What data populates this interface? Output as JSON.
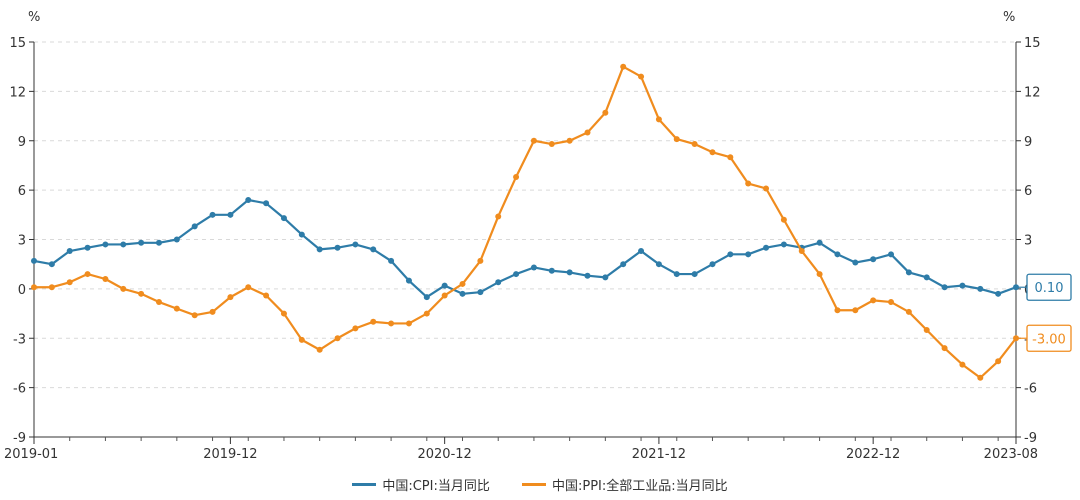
{
  "chart_data": {
    "type": "line",
    "title": "",
    "xlabel": "",
    "ylabel": "",
    "unit_left": "%",
    "unit_right": "%",
    "ylim": [
      -9,
      15
    ],
    "yticks": [
      15,
      12,
      9,
      6,
      3,
      0,
      -3,
      -6,
      -9
    ],
    "grid": true,
    "legend_position": "bottom",
    "x_tick_labels": [
      "2019-01",
      "2019-12",
      "2020-12",
      "2021-12",
      "2022-12",
      "2023-08"
    ],
    "x": [
      "2019-01",
      "2019-02",
      "2019-03",
      "2019-04",
      "2019-05",
      "2019-06",
      "2019-07",
      "2019-08",
      "2019-09",
      "2019-10",
      "2019-11",
      "2019-12",
      "2020-01",
      "2020-02",
      "2020-03",
      "2020-04",
      "2020-05",
      "2020-06",
      "2020-07",
      "2020-08",
      "2020-09",
      "2020-10",
      "2020-11",
      "2020-12",
      "2021-01",
      "2021-02",
      "2021-03",
      "2021-04",
      "2021-05",
      "2021-06",
      "2021-07",
      "2021-08",
      "2021-09",
      "2021-10",
      "2021-11",
      "2021-12",
      "2022-01",
      "2022-02",
      "2022-03",
      "2022-04",
      "2022-05",
      "2022-06",
      "2022-07",
      "2022-08",
      "2022-09",
      "2022-10",
      "2022-11",
      "2022-12",
      "2023-01",
      "2023-02",
      "2023-03",
      "2023-04",
      "2023-05",
      "2023-06",
      "2023-07",
      "2023-08"
    ],
    "series": [
      {
        "name": "中国:CPI:当月同比",
        "color": "#2e7ca8",
        "end_label": "0.10",
        "values": [
          1.7,
          1.5,
          2.3,
          2.5,
          2.7,
          2.7,
          2.8,
          2.8,
          3.0,
          3.8,
          4.5,
          4.5,
          5.4,
          5.2,
          4.3,
          3.3,
          2.4,
          2.5,
          2.7,
          2.4,
          1.7,
          0.5,
          -0.5,
          0.2,
          -0.3,
          -0.2,
          0.4,
          0.9,
          1.3,
          1.1,
          1.0,
          0.8,
          0.7,
          1.5,
          2.3,
          1.5,
          0.9,
          0.9,
          1.5,
          2.1,
          2.1,
          2.5,
          2.7,
          2.5,
          2.8,
          2.1,
          1.6,
          1.8,
          2.1,
          1.0,
          0.7,
          0.1,
          0.2,
          0.0,
          -0.3,
          0.1
        ]
      },
      {
        "name": "中国:PPI:全部工业品:当月同比",
        "color": "#f08c1e",
        "end_label": "-3.00",
        "values": [
          0.1,
          0.1,
          0.4,
          0.9,
          0.6,
          0.0,
          -0.3,
          -0.8,
          -1.2,
          -1.6,
          -1.4,
          -0.5,
          0.1,
          -0.4,
          -1.5,
          -3.1,
          -3.7,
          -3.0,
          -2.4,
          -2.0,
          -2.1,
          -2.1,
          -1.5,
          -0.4,
          0.3,
          1.7,
          4.4,
          6.8,
          9.0,
          8.8,
          9.0,
          9.5,
          10.7,
          13.5,
          12.9,
          10.3,
          9.1,
          8.8,
          8.3,
          8.0,
          6.4,
          6.1,
          4.2,
          2.3,
          0.9,
          -1.3,
          -1.3,
          -0.7,
          -0.8,
          -1.4,
          -2.5,
          -3.6,
          -4.6,
          -5.4,
          -4.4,
          -3.0
        ]
      }
    ]
  }
}
